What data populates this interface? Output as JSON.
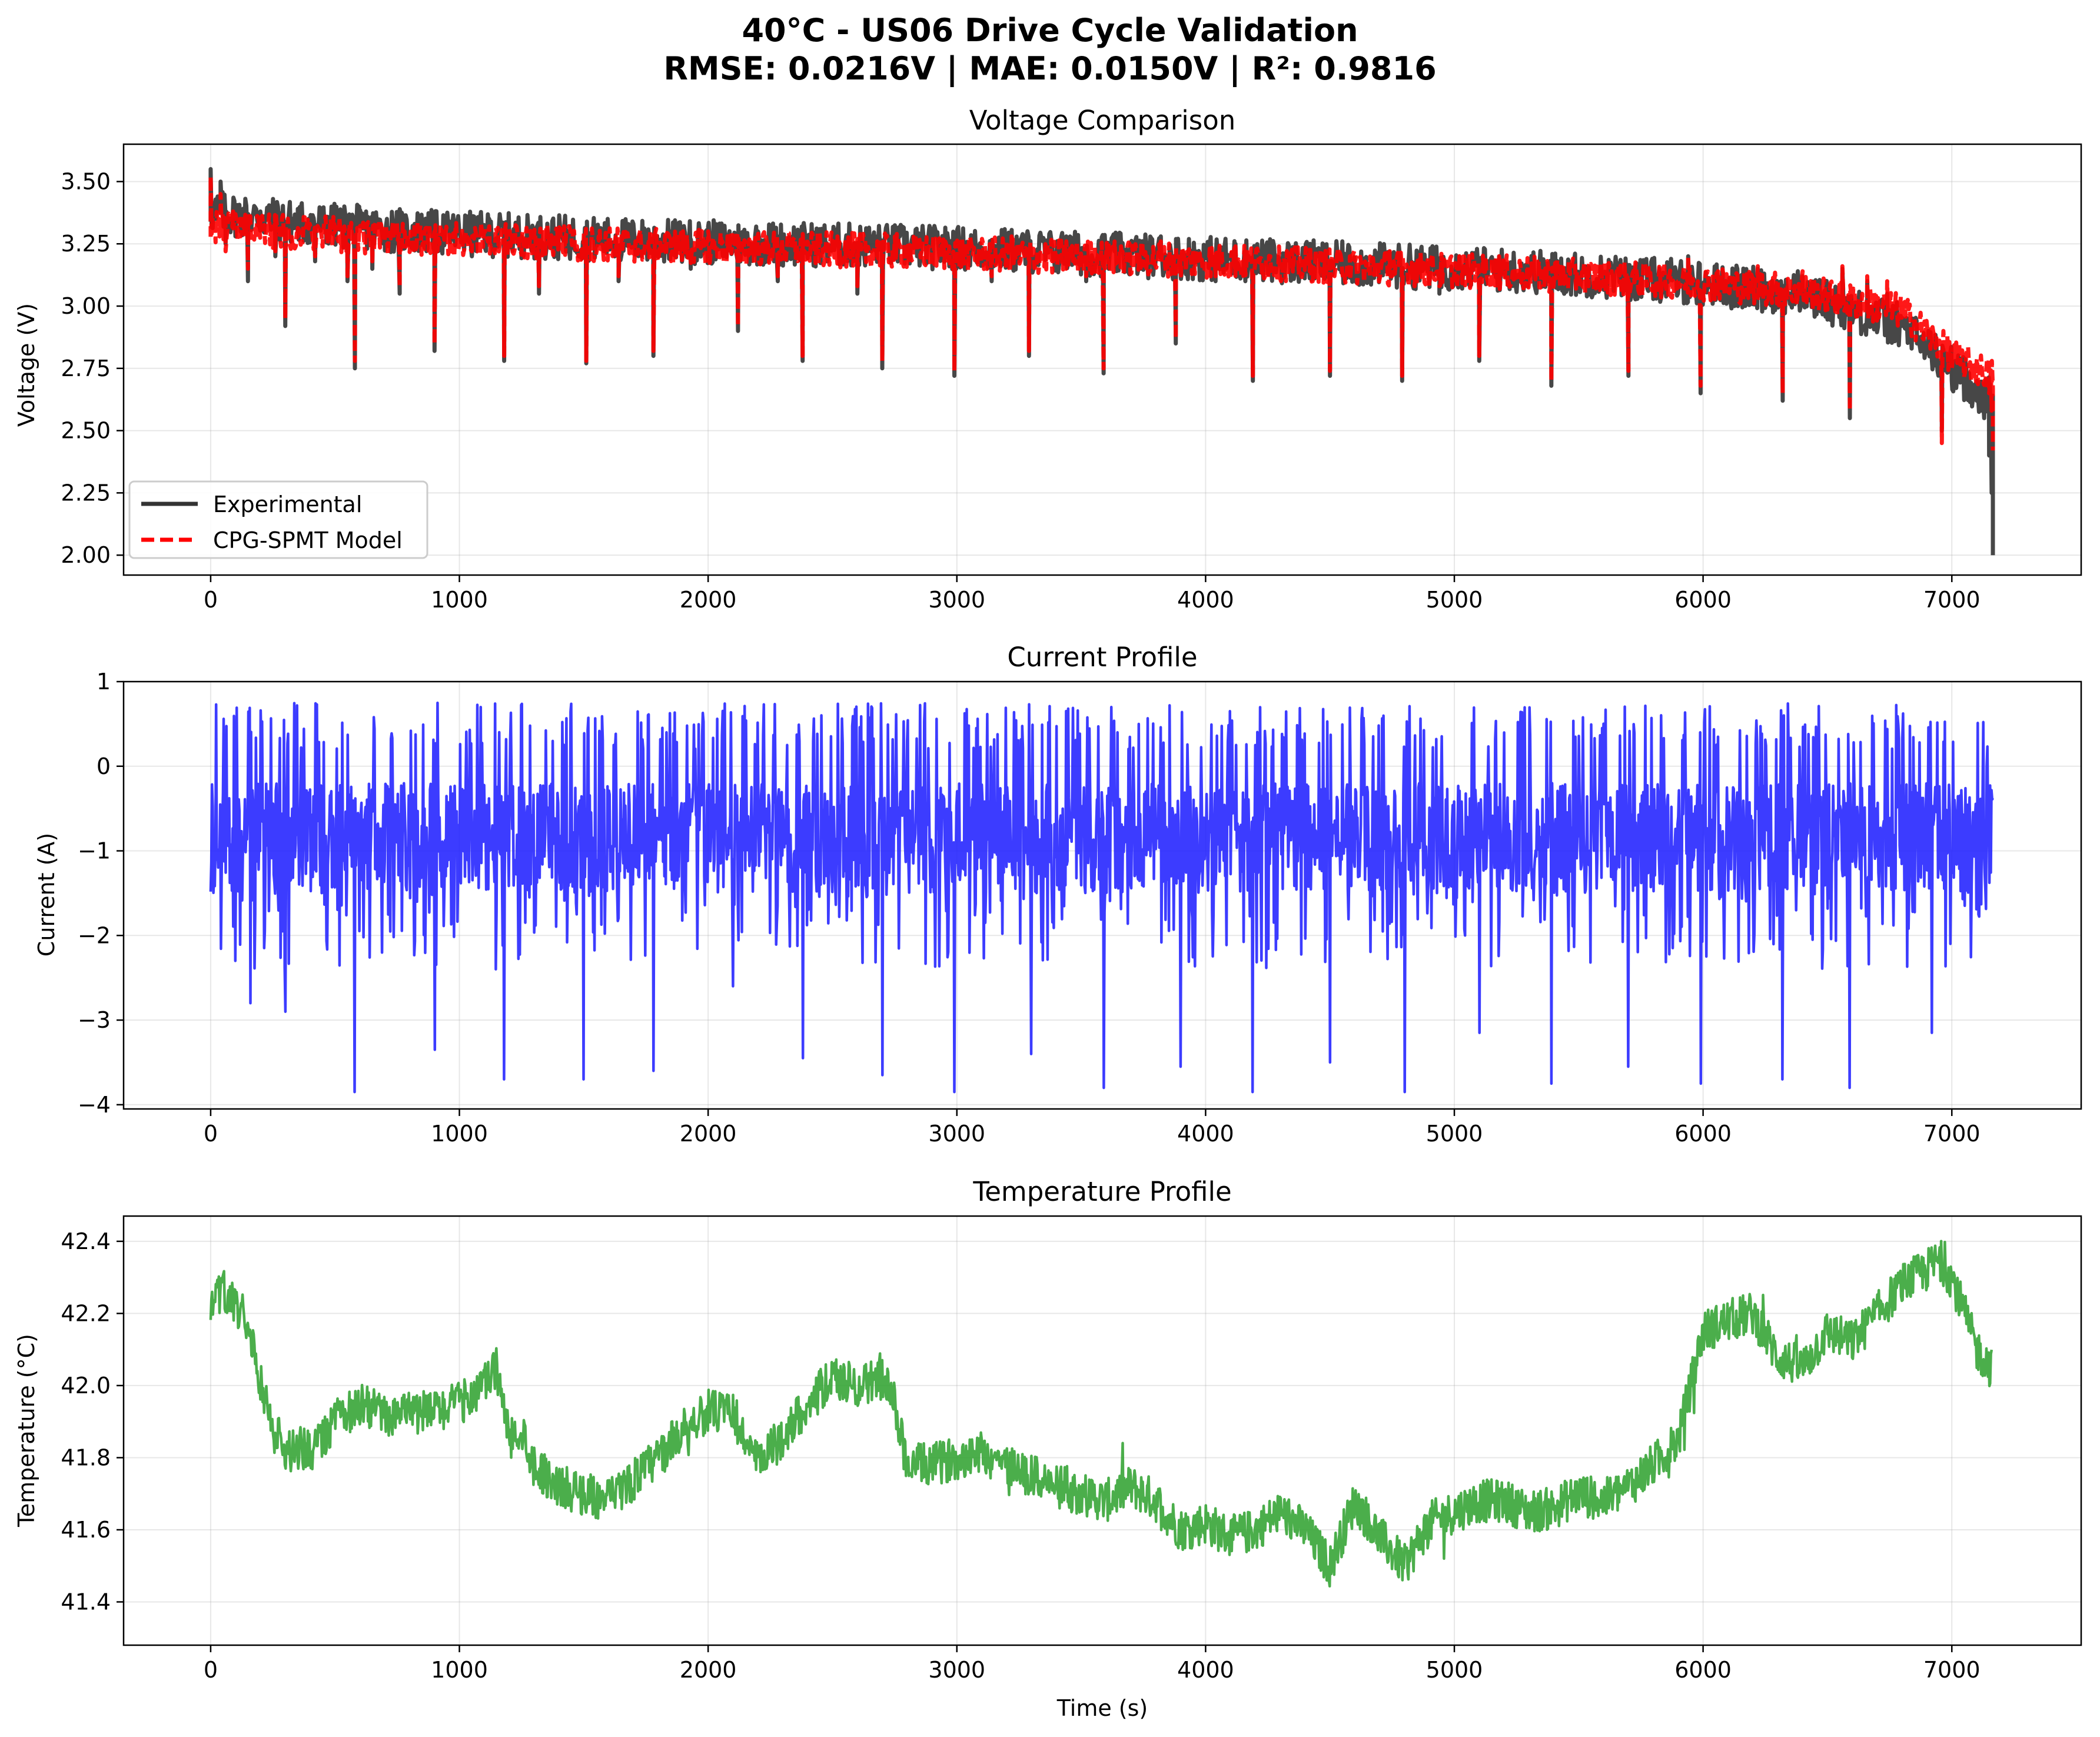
{
  "figure": {
    "title_line1": "40°C - US06 Drive Cycle Validation",
    "title_line2": "RMSE: 0.0216V | MAE: 0.0150V | R²: 0.9816"
  },
  "chart_data": [
    {
      "type": "line",
      "title": "Voltage Comparison",
      "xlabel": "",
      "ylabel": "Voltage (V)",
      "xlim": [
        -350,
        7520
      ],
      "ylim": [
        1.92,
        3.65
      ],
      "xticks": [
        0,
        1000,
        2000,
        3000,
        4000,
        5000,
        6000,
        7000
      ],
      "yticks": [
        2.0,
        2.25,
        2.5,
        2.75,
        3.0,
        3.25,
        3.5
      ],
      "ytick_labels": [
        "2.00",
        "2.25",
        "2.50",
        "2.75",
        "3.00",
        "3.25",
        "3.50"
      ],
      "grid": true,
      "legend": "lower-left",
      "series": [
        {
          "name": "Experimental",
          "color": "#333333",
          "style": "solid",
          "x": [
            0,
            20,
            40,
            60,
            90,
            120,
            150,
            200,
            260,
            300,
            350,
            420,
            500,
            550,
            580,
            600,
            650,
            700,
            760,
            820,
            900,
            960,
            1050,
            1120,
            1180,
            1250,
            1320,
            1400,
            1480,
            1510,
            1560,
            1640,
            1720,
            1780,
            1850,
            1930,
            2000,
            2060,
            2120,
            2200,
            2280,
            2340,
            2380,
            2440,
            2520,
            2600,
            2680,
            2700,
            2760,
            2840,
            2920,
            2990,
            3060,
            3140,
            3220,
            3290,
            3360,
            3440,
            3520,
            3590,
            3660,
            3740,
            3820,
            3880,
            3960,
            4040,
            4120,
            4190,
            4260,
            4340,
            4420,
            4500,
            4580,
            4660,
            4740,
            4790,
            4860,
            4940,
            5020,
            5100,
            5180,
            5260,
            5340,
            5390,
            5460,
            5540,
            5620,
            5700,
            5780,
            5860,
            5940,
            5990,
            6060,
            6140,
            6220,
            6300,
            6320,
            6400,
            6480,
            6560,
            6590,
            6660,
            6740,
            6800,
            6860,
            6920,
            6960,
            7000,
            7050,
            7100,
            7130,
            7150,
            7160,
            7165
          ],
          "y": [
            3.55,
            3.35,
            3.5,
            3.25,
            3.4,
            3.3,
            3.1,
            3.38,
            3.2,
            2.92,
            3.3,
            3.18,
            3.35,
            3.1,
            2.75,
            3.32,
            3.15,
            3.28,
            3.05,
            3.33,
            2.82,
            3.3,
            3.2,
            3.35,
            2.78,
            3.28,
            3.05,
            3.32,
            3.2,
            2.77,
            3.3,
            3.1,
            3.27,
            2.8,
            3.3,
            3.15,
            3.32,
            3.2,
            2.9,
            3.3,
            3.1,
            3.28,
            2.78,
            3.25,
            3.3,
            3.05,
            3.28,
            2.75,
            3.25,
            3.2,
            3.28,
            2.72,
            3.25,
            3.1,
            3.3,
            2.8,
            3.22,
            3.28,
            3.1,
            2.73,
            3.25,
            3.15,
            3.28,
            2.85,
            3.22,
            3.1,
            3.25,
            2.7,
            3.2,
            3.15,
            3.25,
            2.72,
            3.2,
            3.1,
            3.22,
            2.7,
            3.18,
            3.05,
            3.2,
            2.78,
            3.2,
            3.1,
            3.18,
            2.68,
            3.18,
            3.05,
            3.15,
            2.72,
            3.15,
            3.1,
            3.2,
            2.65,
            3.12,
            3.0,
            3.15,
            3.08,
            2.62,
            3.12,
            3.05,
            3.15,
            2.55,
            3.1,
            3.05,
            2.95,
            2.85,
            2.78,
            2.5,
            2.7,
            2.68,
            2.62,
            2.55,
            2.4,
            2.25,
            2.0
          ],
          "baseline": [
            3.38,
            3.34,
            3.3,
            3.28,
            3.26,
            3.25,
            3.24,
            3.22,
            3.2,
            3.18,
            3.16,
            3.14,
            3.1,
            3.05,
            2.92,
            2.75,
            2.62
          ],
          "baseline_x": [
            0,
            300,
            800,
            1300,
            1800,
            2300,
            2800,
            3300,
            3800,
            4300,
            4800,
            5300,
            5900,
            6400,
            6800,
            7000,
            7160
          ]
        },
        {
          "name": "CPG-SPMT Model",
          "color": "#ff0000",
          "style": "dashed",
          "x": [
            0,
            20,
            40,
            60,
            90,
            120,
            150,
            200,
            260,
            300,
            350,
            420,
            500,
            550,
            580,
            600,
            650,
            700,
            760,
            820,
            900,
            960,
            1050,
            1120,
            1180,
            1250,
            1320,
            1400,
            1480,
            1510,
            1560,
            1640,
            1720,
            1780,
            1850,
            1930,
            2000,
            2060,
            2120,
            2200,
            2280,
            2340,
            2380,
            2440,
            2520,
            2600,
            2680,
            2700,
            2760,
            2840,
            2920,
            2990,
            3060,
            3140,
            3220,
            3290,
            3360,
            3440,
            3520,
            3590,
            3660,
            3740,
            3820,
            3880,
            3960,
            4040,
            4120,
            4190,
            4260,
            4340,
            4420,
            4500,
            4580,
            4660,
            4740,
            4790,
            4860,
            4940,
            5020,
            5100,
            5180,
            5260,
            5340,
            5390,
            5460,
            5540,
            5620,
            5700,
            5780,
            5860,
            5940,
            5990,
            6060,
            6140,
            6220,
            6300,
            6320,
            6400,
            6480,
            6560,
            6590,
            6660,
            6740,
            6800,
            6860,
            6920,
            6960,
            7000,
            7050,
            7100,
            7130,
            7150,
            7160,
            7165
          ],
          "y": [
            3.52,
            3.3,
            3.45,
            3.22,
            3.38,
            3.28,
            3.15,
            3.35,
            3.22,
            2.95,
            3.28,
            3.2,
            3.32,
            3.12,
            2.78,
            3.3,
            3.18,
            3.26,
            3.08,
            3.3,
            2.85,
            3.28,
            3.22,
            3.32,
            2.8,
            3.26,
            3.08,
            3.3,
            3.22,
            2.78,
            3.28,
            3.12,
            3.25,
            2.82,
            3.28,
            3.18,
            3.3,
            3.22,
            2.92,
            3.28,
            3.12,
            3.26,
            2.8,
            3.24,
            3.28,
            3.08,
            3.26,
            2.78,
            3.24,
            3.22,
            3.26,
            2.74,
            3.24,
            3.12,
            3.28,
            2.82,
            3.22,
            3.26,
            3.12,
            2.75,
            3.24,
            3.18,
            3.26,
            2.87,
            3.22,
            3.12,
            3.24,
            2.72,
            3.2,
            3.17,
            3.24,
            2.74,
            3.2,
            3.12,
            3.22,
            2.72,
            3.18,
            3.08,
            3.2,
            2.8,
            3.2,
            3.12,
            3.18,
            2.7,
            3.18,
            3.08,
            3.16,
            2.74,
            3.16,
            3.12,
            3.2,
            2.68,
            3.14,
            3.05,
            3.16,
            3.1,
            2.65,
            3.14,
            3.08,
            3.16,
            2.58,
            3.12,
            3.1,
            3.0,
            2.9,
            2.85,
            2.45,
            2.75,
            2.72,
            2.78,
            2.7,
            2.65,
            2.58,
            2.42
          ],
          "baseline": [
            3.32,
            3.3,
            3.27,
            3.26,
            3.24,
            3.23,
            3.22,
            3.2,
            3.19,
            3.17,
            3.15,
            3.13,
            3.1,
            3.06,
            2.98,
            2.8,
            2.72
          ],
          "baseline_x": [
            0,
            300,
            800,
            1300,
            1800,
            2300,
            2800,
            3300,
            3800,
            4300,
            4800,
            5300,
            5900,
            6400,
            6800,
            7000,
            7160
          ]
        }
      ]
    },
    {
      "type": "line",
      "title": "Current Profile",
      "xlabel": "",
      "ylabel": "Current (A)",
      "xlim": [
        -350,
        7520
      ],
      "ylim": [
        -4.05,
        1.0
      ],
      "xticks": [
        0,
        1000,
        2000,
        3000,
        4000,
        5000,
        6000,
        7000
      ],
      "yticks": [
        -4,
        -3,
        -2,
        -1,
        0,
        1
      ],
      "ytick_labels": [
        "−4",
        "−3",
        "−2",
        "−1",
        "0",
        "1"
      ],
      "grid": true,
      "series": [
        {
          "name": "",
          "color": "#1a1aff",
          "style": "solid",
          "range": [
            -3.85,
            0.8
          ],
          "spikes_x": [
            100,
            160,
            300,
            580,
            900,
            1180,
            1500,
            1780,
            2100,
            2380,
            2700,
            2990,
            3300,
            3590,
            3900,
            4190,
            4500,
            4800,
            5100,
            5390,
            5700,
            5990,
            6320,
            6590,
            6920
          ],
          "spikes_y": [
            -2.3,
            -2.8,
            -2.9,
            -3.85,
            -3.35,
            -3.7,
            -3.7,
            -3.6,
            -2.6,
            -3.45,
            -3.65,
            -3.85,
            -3.4,
            -3.8,
            -3.55,
            -3.85,
            -3.5,
            -3.85,
            -3.15,
            -3.75,
            -3.55,
            -3.75,
            -3.7,
            -3.8,
            -3.15
          ]
        }
      ]
    },
    {
      "type": "line",
      "title": "Temperature Profile",
      "xlabel": "Time (s)",
      "ylabel": "Temperature (°C)",
      "xlim": [
        -350,
        7520
      ],
      "ylim": [
        41.28,
        42.47
      ],
      "xticks": [
        0,
        1000,
        2000,
        3000,
        4000,
        5000,
        6000,
        7000
      ],
      "yticks": [
        41.4,
        41.6,
        41.8,
        42.0,
        42.2,
        42.4
      ],
      "ytick_labels": [
        "41.4",
        "41.6",
        "41.8",
        "42.0",
        "42.2",
        "42.4"
      ],
      "grid": true,
      "series": [
        {
          "name": "",
          "color": "#2ca02c",
          "style": "solid",
          "x": [
            0,
            50,
            100,
            150,
            200,
            250,
            300,
            400,
            500,
            600,
            700,
            800,
            900,
            1000,
            1100,
            1150,
            1200,
            1250,
            1300,
            1400,
            1500,
            1600,
            1700,
            1800,
            1900,
            2000,
            2100,
            2200,
            2300,
            2400,
            2500,
            2600,
            2700,
            2750,
            2800,
            2900,
            3000,
            3100,
            3200,
            3300,
            3400,
            3500,
            3600,
            3700,
            3800,
            3900,
            4000,
            4100,
            4200,
            4300,
            4400,
            4500,
            4600,
            4700,
            4800,
            4900,
            5000,
            5100,
            5200,
            5300,
            5400,
            5500,
            5600,
            5700,
            5800,
            5900,
            6000,
            6100,
            6200,
            6300,
            6400,
            6500,
            6600,
            6700,
            6800,
            6900,
            6950,
            7000,
            7050,
            7100,
            7160
          ],
          "y": [
            42.2,
            42.27,
            42.22,
            42.18,
            42.02,
            41.88,
            41.82,
            41.82,
            41.9,
            41.95,
            41.92,
            41.92,
            41.93,
            41.95,
            42.0,
            42.05,
            41.85,
            41.88,
            41.78,
            41.72,
            41.7,
            41.68,
            41.74,
            41.8,
            41.88,
            41.93,
            41.92,
            41.78,
            41.86,
            41.95,
            42.02,
            42.0,
            42.02,
            41.95,
            41.78,
            41.78,
            41.8,
            41.82,
            41.78,
            41.75,
            41.72,
            41.7,
            41.68,
            41.72,
            41.68,
            41.6,
            41.62,
            41.58,
            41.6,
            41.65,
            41.6,
            41.5,
            41.68,
            41.58,
            41.5,
            41.62,
            41.65,
            41.68,
            41.68,
            41.65,
            41.66,
            41.7,
            41.68,
            41.72,
            41.78,
            41.85,
            42.15,
            42.18,
            42.2,
            42.08,
            42.05,
            42.15,
            42.12,
            42.2,
            42.28,
            42.32,
            42.35,
            42.3,
            42.2,
            42.1,
            42.05
          ],
          "noise": 0.06
        }
      ]
    }
  ]
}
